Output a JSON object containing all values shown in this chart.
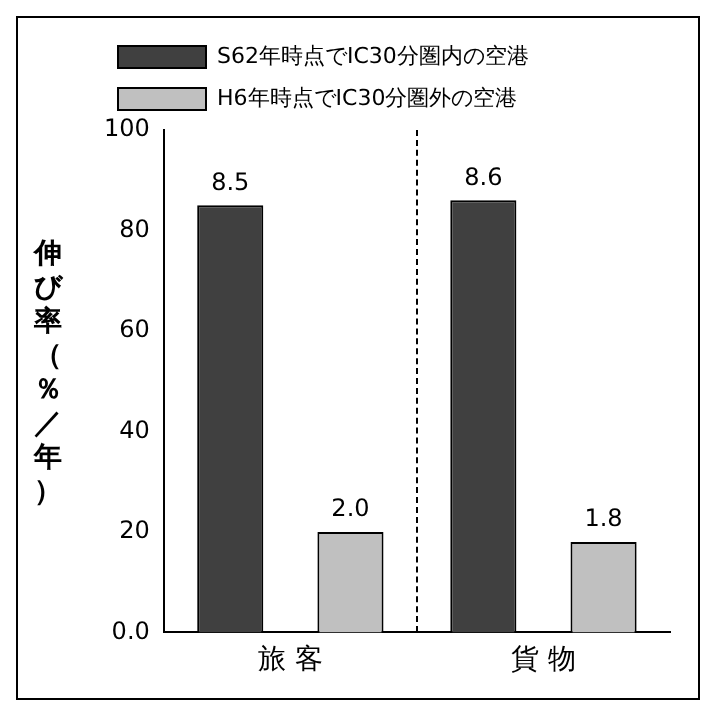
{
  "chart_data": {
    "type": "bar",
    "ylabel": "伸び率（％／年）",
    "categories": [
      "旅 客",
      "貨 物"
    ],
    "series": [
      {
        "name": "S62年時点でIC30分圏内の空港",
        "color": "#404040",
        "values": [
          85,
          86
        ]
      },
      {
        "name": "H6年時点でIC30分圏外の空港",
        "color": "#c0c0c0",
        "values": [
          20,
          18
        ]
      }
    ],
    "annotations": [
      "8.5",
      "2.0",
      "8.6",
      "1.8"
    ],
    "ylim": [
      0,
      100
    ],
    "yticks": [
      {
        "value": 0,
        "label": "0.0"
      },
      20,
      40,
      60,
      80,
      100
    ],
    "grid": false,
    "legend": "top"
  }
}
